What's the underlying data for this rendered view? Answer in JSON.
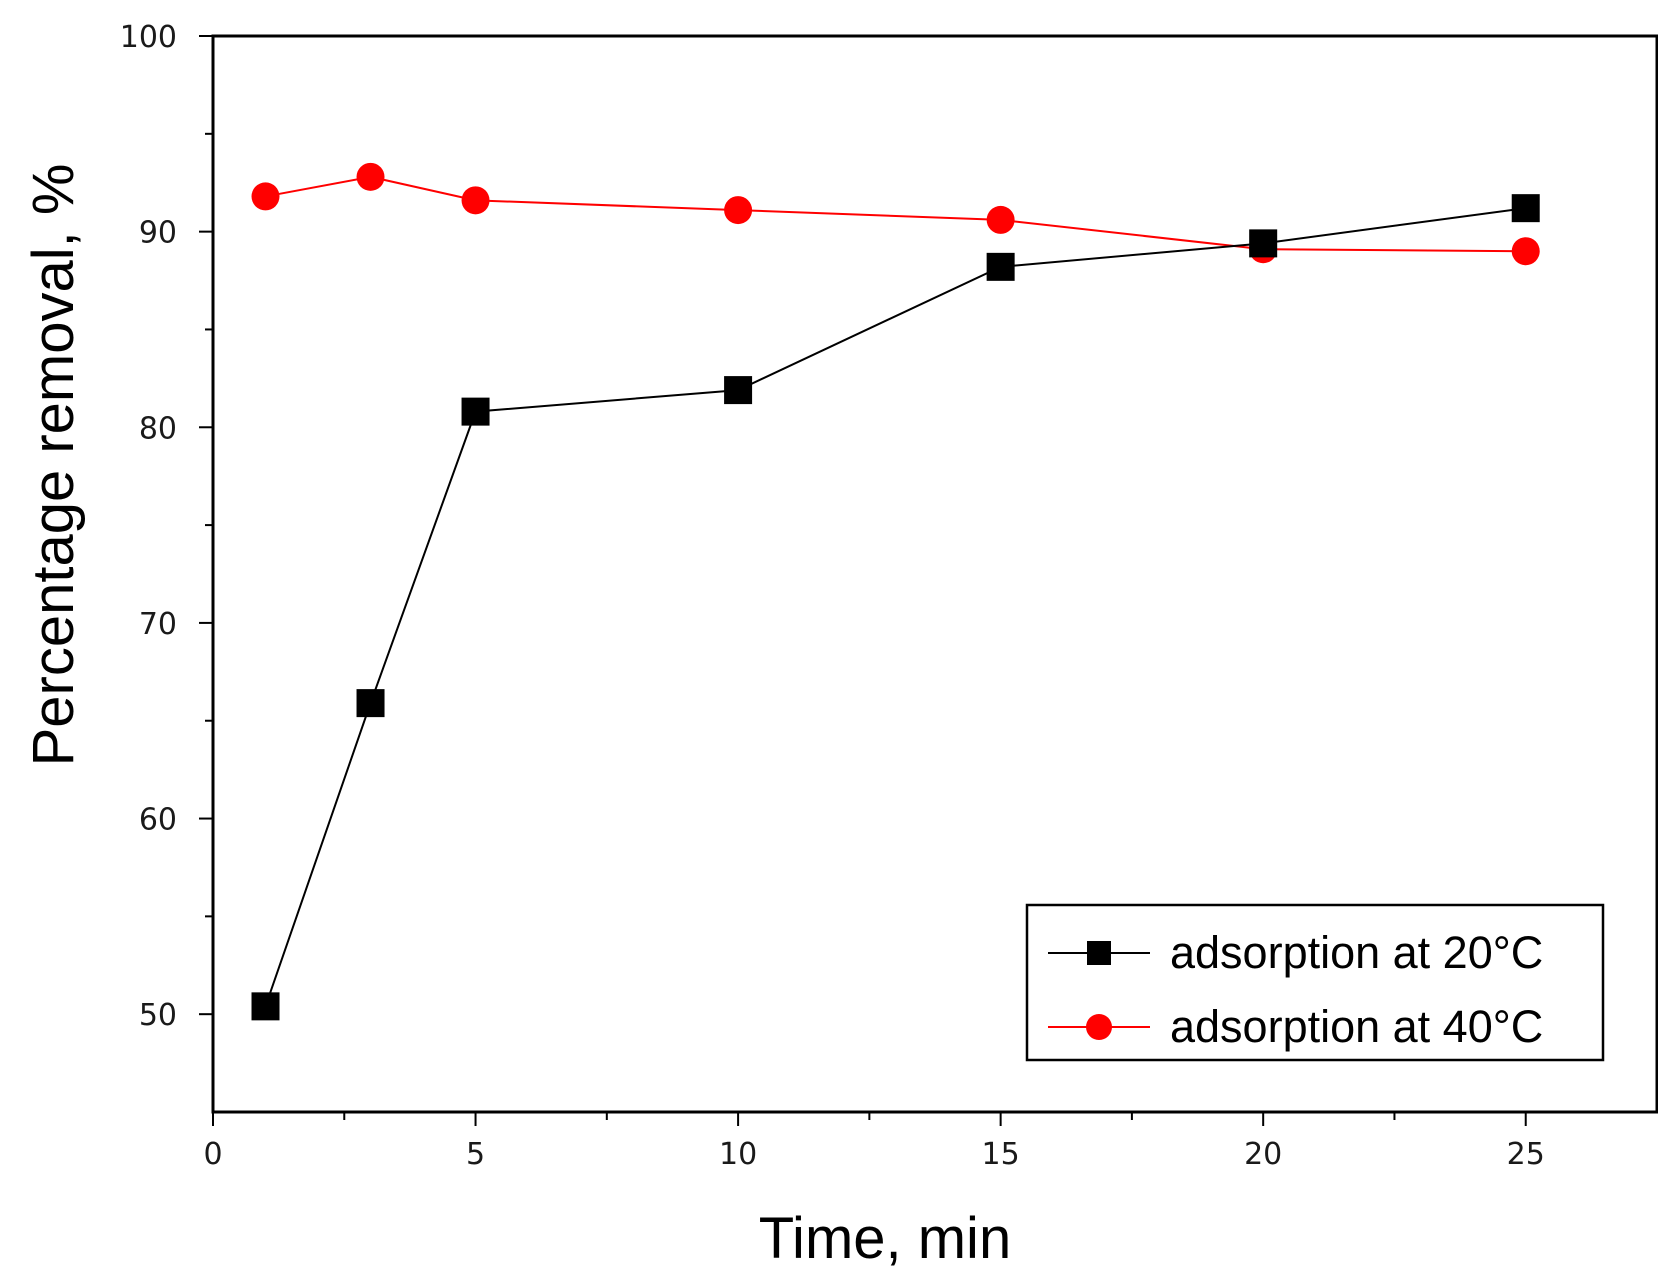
{
  "chart_data": {
    "type": "line",
    "title": "",
    "xlabel": "Time, min",
    "ylabel": "Percentage removal, %",
    "xlim": [
      0,
      27.5
    ],
    "ylim": [
      45,
      100
    ],
    "xticks_major": [
      0,
      5,
      10,
      15,
      20,
      25
    ],
    "xtick_labels": [
      "0",
      "5",
      "10",
      "15",
      "20",
      "25"
    ],
    "yticks_major": [
      50,
      60,
      70,
      80,
      90,
      100
    ],
    "ytick_labels": [
      "50",
      "60",
      "70",
      "80",
      "90",
      "100"
    ],
    "grid": false,
    "legend_position": "bottom-right",
    "series": [
      {
        "name": "adsorption at 20°C",
        "color": "#000000",
        "marker": "square",
        "x": [
          1,
          3,
          5,
          10,
          15,
          20,
          25
        ],
        "y": [
          50.4,
          65.9,
          80.8,
          81.9,
          88.2,
          89.4,
          91.2
        ]
      },
      {
        "name": "adsorption at 40°C",
        "color": "#ff0000",
        "marker": "circle",
        "x": [
          1,
          3,
          5,
          10,
          15,
          20,
          25
        ],
        "y": [
          91.8,
          92.8,
          91.6,
          91.1,
          90.6,
          89.1,
          89.0
        ]
      }
    ]
  }
}
